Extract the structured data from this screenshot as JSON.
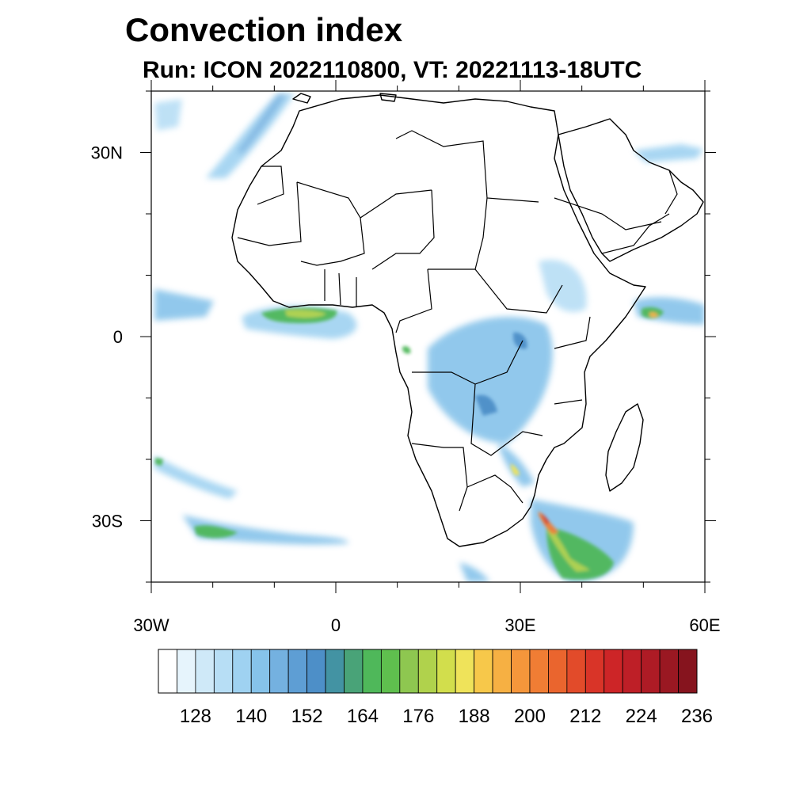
{
  "title": "Convection index",
  "subtitle": "Run: ICON 2022110800,  VT: 20221113-18UTC",
  "map": {
    "projection": "cylindrical-equidistant",
    "lon_range": [
      -30,
      60
    ],
    "lat_range": [
      -40,
      40
    ],
    "x_ticks": [
      {
        "lon": -30,
        "label": "30W"
      },
      {
        "lon": 0,
        "label": "0"
      },
      {
        "lon": 30,
        "label": "30E"
      },
      {
        "lon": 60,
        "label": "60E"
      }
    ],
    "y_ticks": [
      {
        "lat": 30,
        "label": "30N"
      },
      {
        "lat": 0,
        "label": "0"
      },
      {
        "lat": -30,
        "label": "30S"
      }
    ],
    "region": "Africa",
    "background": "#ffffff",
    "outline_color": "#000000"
  },
  "colorbar": {
    "levels": [
      120,
      124,
      128,
      132,
      136,
      140,
      144,
      148,
      152,
      156,
      160,
      164,
      168,
      172,
      176,
      180,
      184,
      188,
      192,
      196,
      200,
      204,
      208,
      212,
      216,
      220,
      224,
      228,
      232,
      236
    ],
    "labels": [
      "128",
      "140",
      "152",
      "164",
      "176",
      "188",
      "200",
      "212",
      "224",
      "236"
    ],
    "colors": [
      "#ffffff",
      "#e6f4fc",
      "#cfe9f8",
      "#b7def5",
      "#9fd2f1",
      "#86c3ea",
      "#74b1e0",
      "#5e9ed4",
      "#4d8fc8",
      "#4393a3",
      "#49a378",
      "#4fb85a",
      "#5fbf4e",
      "#8ec750",
      "#b0d24c",
      "#d2de4c",
      "#efe35a",
      "#f7c84a",
      "#f6b043",
      "#f5963b",
      "#f07d34",
      "#ea652e",
      "#e24b2a",
      "#d93428",
      "#cd2527",
      "#be1f27",
      "#ae1b25",
      "#9a1822",
      "#86141e"
    ]
  }
}
